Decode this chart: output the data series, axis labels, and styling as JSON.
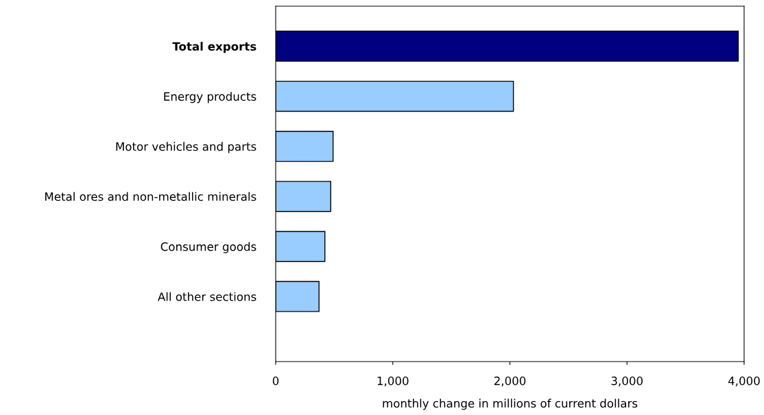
{
  "chart_data": {
    "type": "bar",
    "orientation": "horizontal",
    "xlabel": "monthly change in millions of current dollars",
    "categories": [
      "Total exports",
      "Energy products",
      "Motor vehicles and parts",
      "Metal ores and non-metallic minerals",
      "Consumer goods",
      "All other sections"
    ],
    "values": [
      3950,
      2030,
      490,
      470,
      420,
      370
    ],
    "colors": [
      "#000080",
      "#99ccff",
      "#99ccff",
      "#99ccff",
      "#99ccff",
      "#99ccff"
    ],
    "xlim": [
      0,
      4000
    ],
    "xticks": [
      {
        "value": 0,
        "label": "0"
      },
      {
        "value": 1000,
        "label": "1,000"
      },
      {
        "value": 2000,
        "label": "2,000"
      },
      {
        "value": 3000,
        "label": "3,000"
      },
      {
        "value": 4000,
        "label": "4,000"
      }
    ],
    "grid": false,
    "legend": false
  }
}
